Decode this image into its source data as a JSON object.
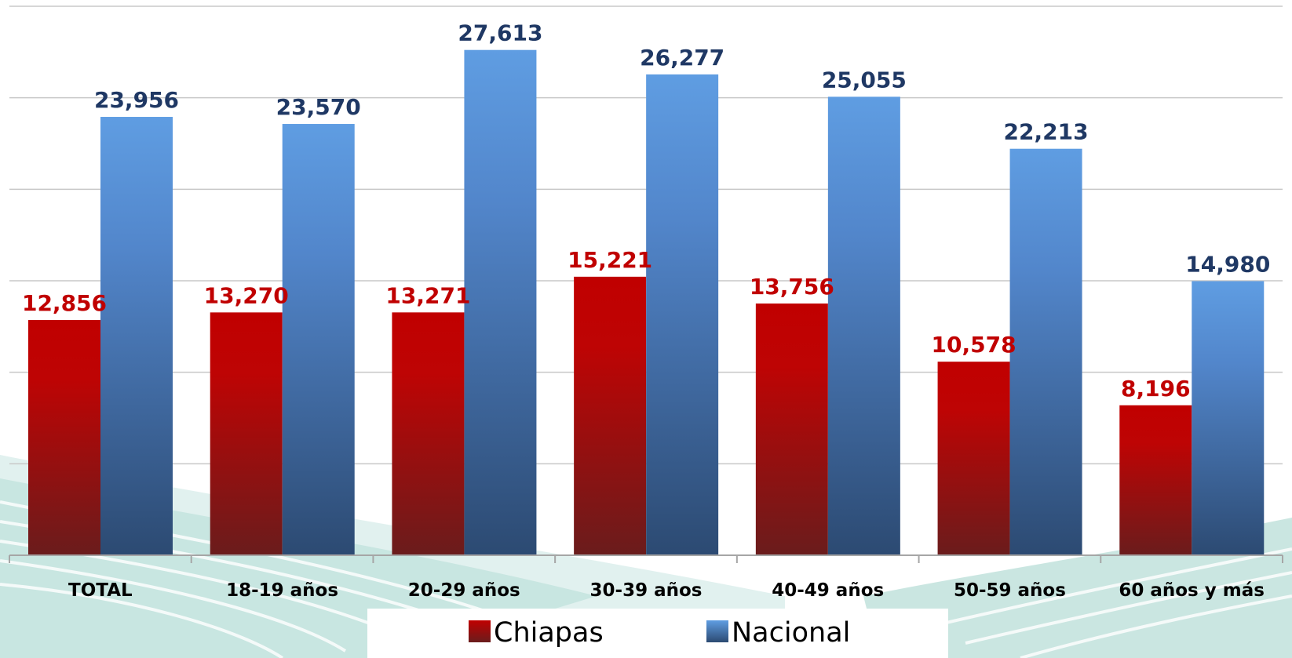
{
  "chart_data": {
    "type": "bar",
    "categories": [
      "TOTAL",
      "18-19 años",
      "20-29 años",
      "30-39 años",
      "40-49 años",
      "50-59 años",
      "60 años y más"
    ],
    "series": [
      {
        "name": "Chiapas",
        "values": [
          12856,
          13270,
          13271,
          15221,
          13756,
          10578,
          8196
        ],
        "color": "#c00000"
      },
      {
        "name": "Nacional",
        "values": [
          23956,
          23570,
          27613,
          26277,
          25055,
          22213,
          14980
        ],
        "color": "#5b9bd5"
      }
    ],
    "value_labels": {
      "Chiapas": [
        "12,856",
        "13,270",
        "13,271",
        "15,221",
        "13,756",
        "10,578",
        "8,196"
      ],
      "Nacional": [
        "23,956",
        "23,570",
        "27,613",
        "26,277",
        "25,055",
        "22,213",
        "14,980"
      ]
    },
    "ylim": [
      0,
      30000
    ],
    "grid": true,
    "legend": "bottom-center"
  }
}
